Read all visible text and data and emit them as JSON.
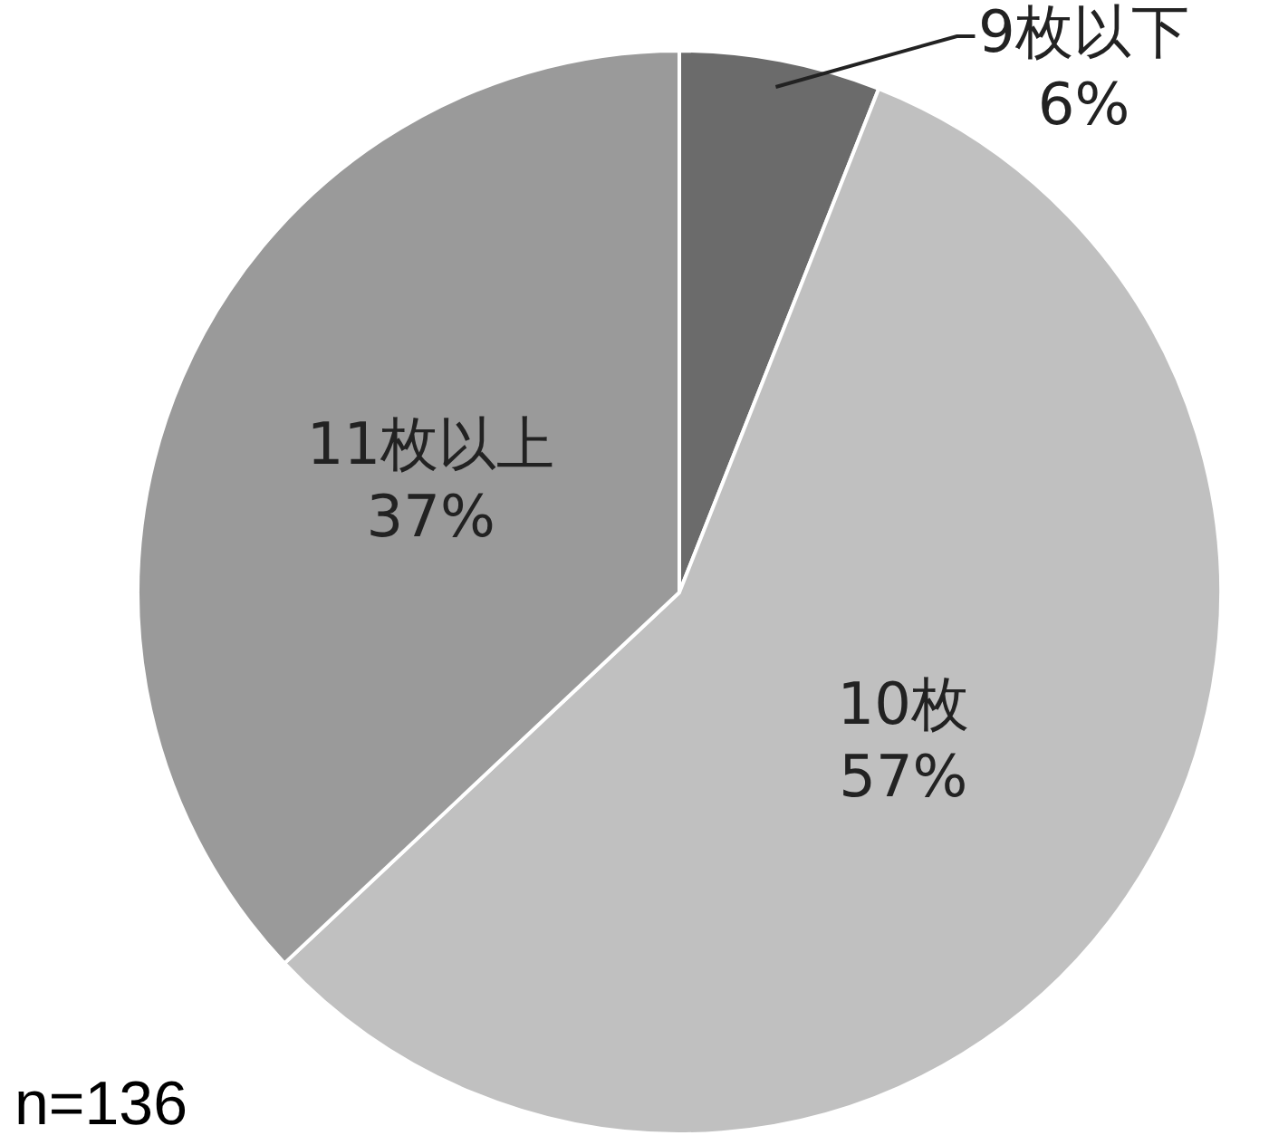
{
  "chart_data": {
    "type": "pie",
    "categories": [
      "9枚以下",
      "10枚",
      "11枚以上"
    ],
    "values": [
      6,
      57,
      37
    ],
    "colors": [
      "#6b6b6b",
      "#c0c0c0",
      "#9a9a9a"
    ],
    "value_labels": [
      "6%",
      "57%",
      "37%"
    ],
    "annotations": [
      "n=136"
    ]
  }
}
